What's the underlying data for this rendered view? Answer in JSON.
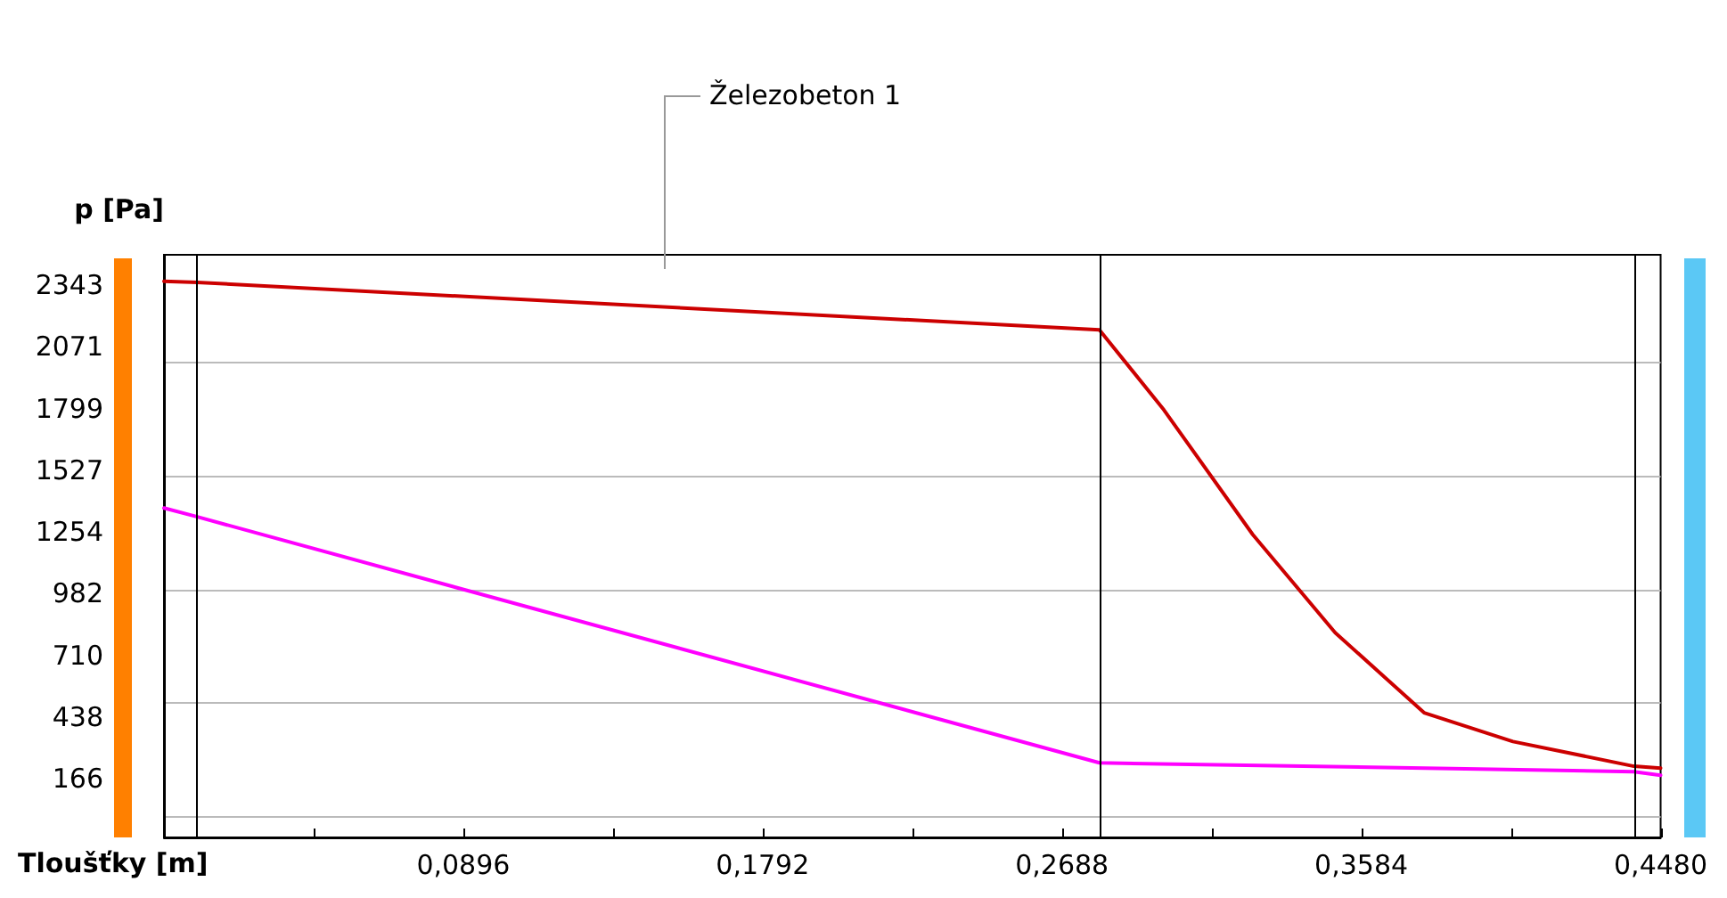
{
  "chart_data": {
    "type": "line",
    "xlabel": "Tloušťky [m]",
    "ylabel": "p [Pa]",
    "annotations": [
      "Železobeton 1"
    ],
    "xlim": [
      0,
      0.448
    ],
    "xticks": [
      {
        "value": 0,
        "label": null
      },
      {
        "value": 0.0448,
        "label": null
      },
      {
        "value": 0.0896,
        "label": "0,0896"
      },
      {
        "value": 0.1344,
        "label": null
      },
      {
        "value": 0.1792,
        "label": "0,1792"
      },
      {
        "value": 0.224,
        "label": null
      },
      {
        "value": 0.2688,
        "label": "0,2688"
      },
      {
        "value": 0.3136,
        "label": null
      },
      {
        "value": 0.3584,
        "label": "0,3584"
      },
      {
        "value": 0.4032,
        "label": null
      },
      {
        "value": 0.448,
        "label": "0,4480"
      }
    ],
    "ylim": [
      -93,
      2477
    ],
    "yticks": [
      166,
      438,
      710,
      982,
      1254,
      1527,
      1799,
      2071,
      2343
    ],
    "grid": "y",
    "marker": "none",
    "line_style": "solid",
    "ref_lines": [
      {
        "axis": "x",
        "value": 0.01,
        "color": "#000000"
      },
      {
        "axis": "x",
        "value": 0.28,
        "color": "#000000"
      },
      {
        "axis": "x",
        "value": 0.44,
        "color": "#000000"
      }
    ],
    "series": [
      {
        "color": "#cc0000",
        "x": [
          0,
          0.01,
          0.28,
          0.2993,
          0.3259,
          0.3506,
          0.3772,
          0.4038,
          0.44,
          0.448
        ],
        "values": [
          2360,
          2355,
          2146,
          1793,
          1243,
          810,
          457,
          330,
          221,
          213
        ]
      },
      {
        "color": "#ff00ff",
        "x": [
          0,
          0.01,
          0.28,
          0.44,
          0.448
        ],
        "values": [
          1360,
          1321,
          236,
          197,
          181
        ]
      }
    ]
  }
}
